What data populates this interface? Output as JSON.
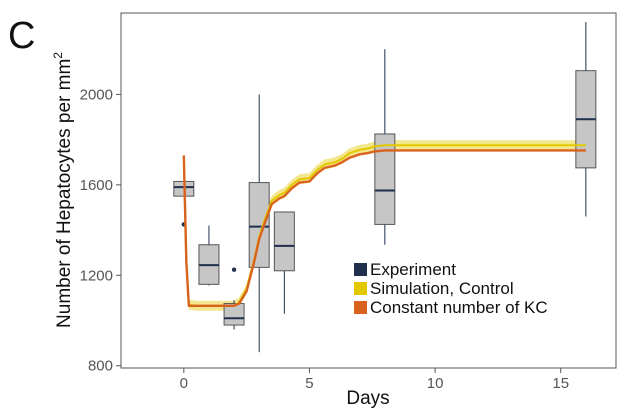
{
  "panel_label": "C",
  "chart_data": {
    "type": "box",
    "xlabel": "Days",
    "ylabel": "Number of Hepatocytes per mm",
    "ylabel_sup": "2",
    "xlim": [
      -2.5,
      17.2
    ],
    "ylim": [
      790,
      2360
    ],
    "x_ticks": [
      0,
      5,
      10,
      15
    ],
    "y_ticks": [
      800,
      1200,
      1600,
      2000
    ],
    "grid": false,
    "legend_position": "bottom-right",
    "colors": {
      "experiment": "#1f2f4d",
      "simulation": "#e3c800",
      "simulation_band": "#f2e27a",
      "constant_kc": "#d9631e",
      "box_fill": "#c6c6c6",
      "box_stroke": "#555555"
    },
    "legend": [
      {
        "label": "Experiment",
        "color": "#1f2f4d"
      },
      {
        "label": "Simulation, Control",
        "color": "#e3c800"
      },
      {
        "label": "Constant number of KC",
        "color": "#d9631e"
      }
    ],
    "boxes": [
      {
        "x": 0,
        "whisker_low": 1550,
        "q1": 1550,
        "median": 1590,
        "q3": 1615,
        "whisker_high": 1615,
        "outliers": [
          1425
        ]
      },
      {
        "x": 1,
        "whisker_low": 1155,
        "q1": 1160,
        "median": 1245,
        "q3": 1335,
        "whisker_high": 1420,
        "outliers": []
      },
      {
        "x": 2,
        "whisker_low": 960,
        "q1": 980,
        "median": 1010,
        "q3": 1075,
        "whisker_high": 1090,
        "outliers": [
          1225
        ]
      },
      {
        "x": 3,
        "whisker_low": 860,
        "q1": 1235,
        "median": 1415,
        "q3": 1610,
        "whisker_high": 2000,
        "outliers": []
      },
      {
        "x": 4,
        "whisker_low": 1030,
        "q1": 1220,
        "median": 1330,
        "q3": 1480,
        "whisker_high": 1480,
        "outliers": []
      },
      {
        "x": 8,
        "whisker_low": 1335,
        "q1": 1425,
        "median": 1575,
        "q3": 1825,
        "whisker_high": 2200,
        "outliers": []
      },
      {
        "x": 16,
        "whisker_low": 1460,
        "q1": 1675,
        "median": 1890,
        "q3": 2105,
        "whisker_high": 2320,
        "outliers": []
      }
    ],
    "series": [
      {
        "name": "Simulation, Control",
        "x": [
          0,
          0.1,
          0.2,
          0.5,
          1,
          1.5,
          2,
          2.2,
          2.5,
          2.8,
          3.0,
          3.2,
          3.5,
          3.8,
          4.0,
          4.3,
          4.6,
          5.0,
          5.3,
          5.6,
          6.0,
          6.3,
          6.6,
          7.0,
          7.3,
          7.6,
          8.0,
          9,
          10,
          12,
          14,
          16
        ],
        "y": [
          1730,
          1260,
          1070,
          1065,
          1065,
          1065,
          1065,
          1080,
          1140,
          1270,
          1370,
          1440,
          1530,
          1555,
          1565,
          1600,
          1625,
          1630,
          1665,
          1690,
          1700,
          1715,
          1740,
          1755,
          1760,
          1770,
          1775,
          1775,
          1775,
          1775,
          1775,
          1775
        ],
        "band_halfwidth": 22
      },
      {
        "name": "Constant number of KC",
        "x": [
          0,
          0.1,
          0.2,
          0.5,
          1,
          1.5,
          2,
          2.2,
          2.5,
          2.8,
          3.0,
          3.2,
          3.5,
          3.8,
          4.0,
          4.3,
          4.6,
          5.0,
          5.3,
          5.6,
          6.0,
          6.3,
          6.6,
          7.0,
          7.3,
          7.6,
          8.0,
          9,
          10,
          12,
          14,
          16
        ],
        "y": [
          1730,
          1260,
          1065,
          1065,
          1065,
          1065,
          1065,
          1075,
          1130,
          1260,
          1360,
          1425,
          1515,
          1540,
          1550,
          1585,
          1610,
          1615,
          1650,
          1675,
          1685,
          1700,
          1720,
          1735,
          1740,
          1748,
          1752,
          1752,
          1752,
          1752,
          1752,
          1752
        ]
      }
    ]
  }
}
